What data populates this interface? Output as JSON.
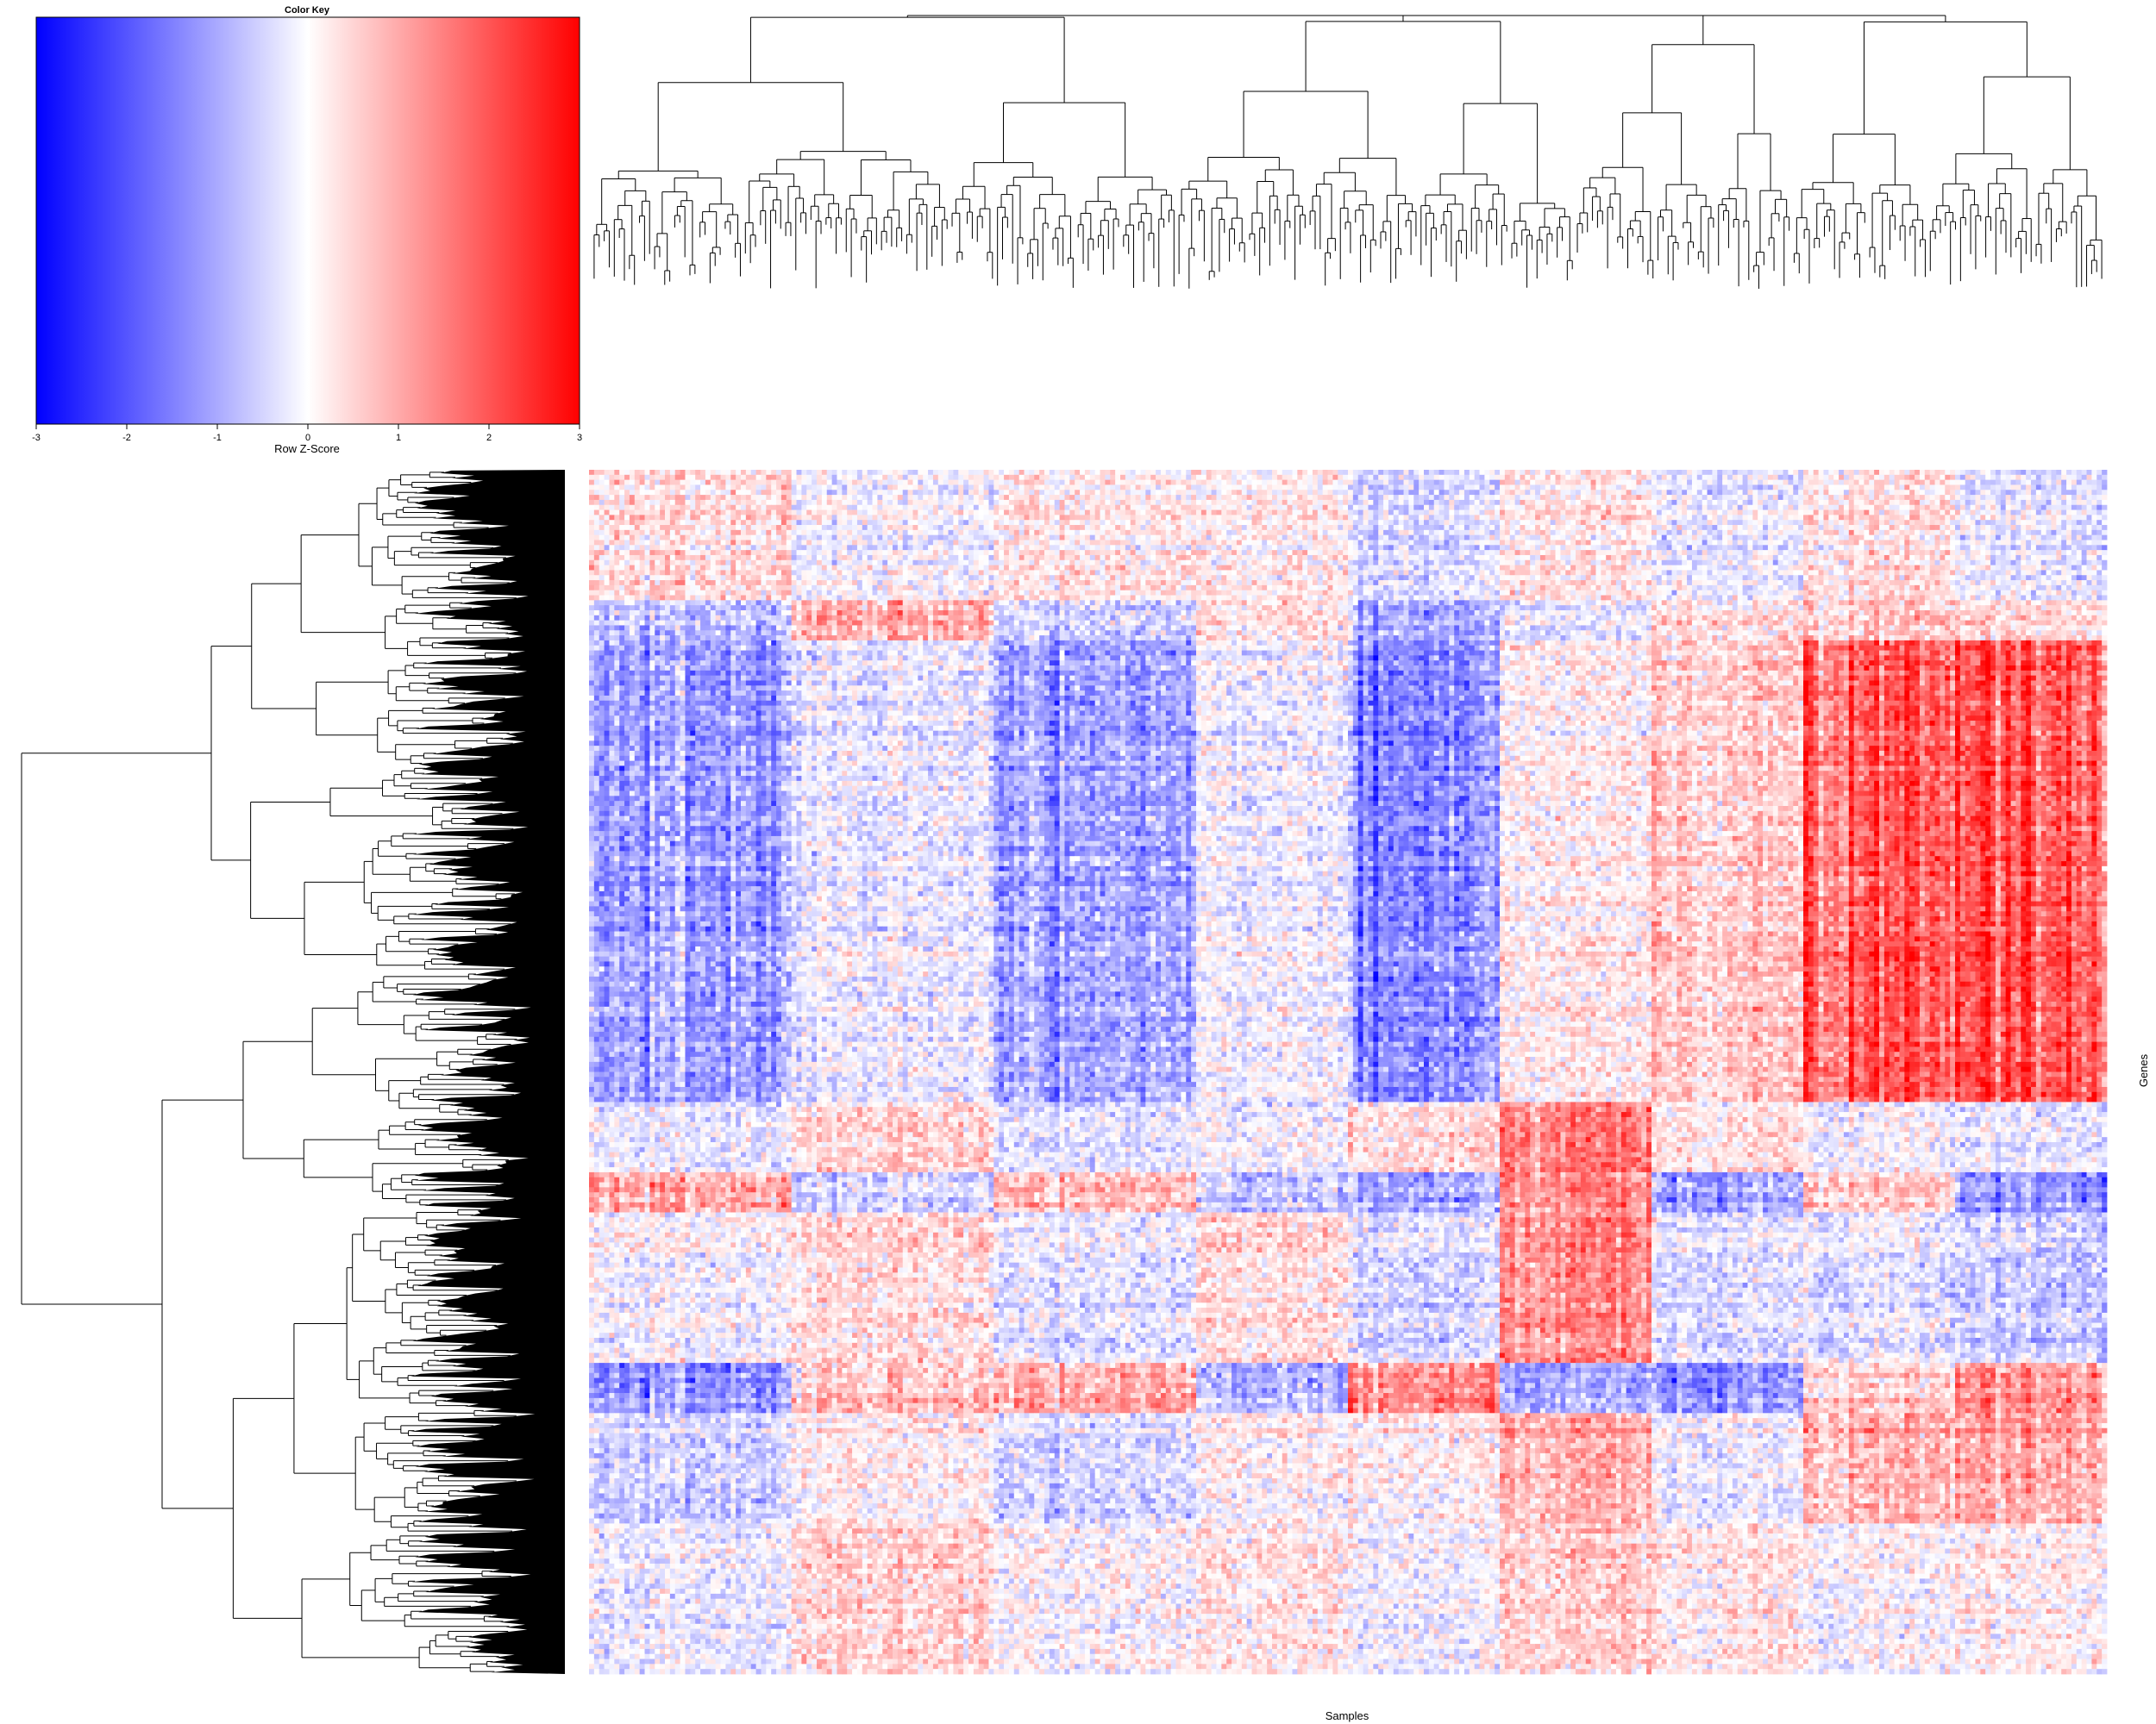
{
  "chart_data": {
    "type": "heatmap",
    "xlabel": "Samples",
    "ylabel": "Genes",
    "color_key": {
      "title": "Color Key",
      "label": "Row Z-Score",
      "range": [
        -3,
        3
      ],
      "ticks": [
        -3,
        -2,
        -1,
        0,
        1,
        2,
        3
      ],
      "colors": {
        "low": "#0000ff",
        "mid": "#ffffff",
        "high": "#ff0000"
      }
    },
    "n_samples": 300,
    "n_gene_rows": 240,
    "sample_groups": [
      {
        "to": 40,
        "mean": -0.3
      },
      {
        "to": 80,
        "mean": 0.25
      },
      {
        "to": 120,
        "mean": -0.2
      },
      {
        "to": 150,
        "mean": 0.3
      },
      {
        "to": 180,
        "mean": -0.5
      },
      {
        "to": 210,
        "mean": 0.35
      },
      {
        "to": 240,
        "mean": -0.1
      },
      {
        "to": 270,
        "mean": 0.45
      },
      {
        "to": 300,
        "mean": 0.25
      }
    ],
    "gene_blocks": [
      {
        "to": 26,
        "profile": [
          0.4,
          -0.2,
          0.3,
          0.1,
          -0.3,
          0.2,
          -0.2,
          0.2,
          -0.3
        ]
      },
      {
        "to": 34,
        "profile": [
          -0.6,
          0.8,
          -0.4,
          0.3,
          -0.8,
          -0.3,
          0.4,
          0.5,
          0.4
        ]
      },
      {
        "to": 126,
        "profile": [
          -1.0,
          -0.3,
          -0.9,
          -0.2,
          -1.2,
          0.1,
          0.6,
          1.6,
          1.9
        ]
      },
      {
        "to": 140,
        "profile": [
          -0.2,
          0.3,
          -0.3,
          -0.2,
          0.4,
          1.4,
          0.3,
          -0.3,
          -0.3
        ]
      },
      {
        "to": 148,
        "profile": [
          1.0,
          -0.6,
          0.8,
          -0.7,
          -0.9,
          1.2,
          -1.0,
          0.4,
          -1.2
        ]
      },
      {
        "to": 178,
        "profile": [
          0.0,
          0.3,
          -0.2,
          0.3,
          -0.3,
          1.3,
          -0.3,
          -0.4,
          -0.6
        ]
      },
      {
        "to": 188,
        "profile": [
          -1.1,
          0.6,
          1.1,
          -0.8,
          1.4,
          -0.9,
          -1.1,
          0.4,
          1.3
        ]
      },
      {
        "to": 210,
        "profile": [
          -0.4,
          0.1,
          -0.3,
          0.1,
          0.3,
          0.9,
          -0.1,
          0.7,
          1.0
        ]
      },
      {
        "to": 240,
        "profile": [
          -0.1,
          0.4,
          0.1,
          0.2,
          0.0,
          0.5,
          0.3,
          -0.1,
          0.1
        ]
      }
    ]
  }
}
